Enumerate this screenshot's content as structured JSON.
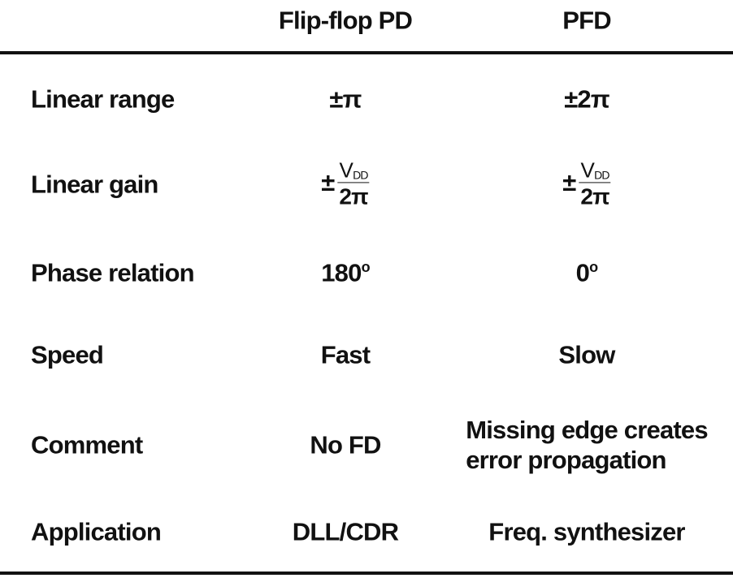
{
  "table": {
    "header": [
      "Flip-flop PD",
      "PFD"
    ],
    "rows": [
      {
        "label": "Linear range",
        "cells": [
          {
            "text": "±π"
          },
          {
            "text": "±2π"
          }
        ]
      },
      {
        "label": "Linear gain",
        "cells": [
          {
            "sign": "±",
            "numerator": "V",
            "numerator_sub": "DD",
            "denominator": "2π"
          },
          {
            "sign": "±",
            "numerator": "V",
            "numerator_sub": "DD",
            "denominator": "2π"
          }
        ]
      },
      {
        "label": "Phase relation",
        "cells": [
          {
            "text": "180",
            "sup": "o"
          },
          {
            "text": "0",
            "sup": "o"
          }
        ]
      },
      {
        "label": "Speed",
        "cells": [
          {
            "text": "Fast"
          },
          {
            "text": "Slow"
          }
        ]
      },
      {
        "label": "Comment",
        "cells": [
          {
            "text": "No FD"
          },
          {
            "lines": [
              "Missing edge creates",
              "error propagation"
            ]
          }
        ]
      },
      {
        "label": "Application",
        "cells": [
          {
            "text": "DLL/CDR"
          },
          {
            "text": "Freq. synthesizer"
          }
        ]
      }
    ]
  }
}
